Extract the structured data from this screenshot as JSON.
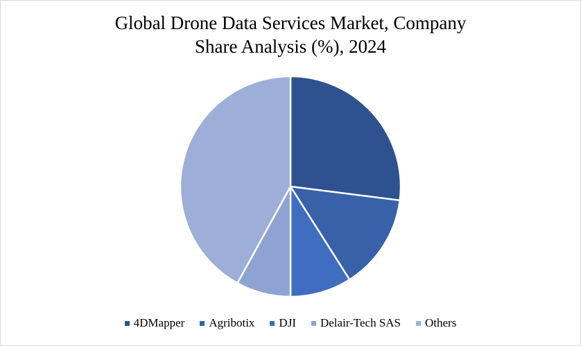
{
  "chart_data": {
    "type": "pie",
    "title_lines": [
      "Global Drone Data Services Market, Company",
      "Share Analysis (%), 2024"
    ],
    "slices": [
      {
        "label": "4DMapper",
        "value": 27,
        "color": "#2e528f"
      },
      {
        "label": "Agribotix",
        "value": 14,
        "color": "#3861aa"
      },
      {
        "label": "DJI",
        "value": 9,
        "color": "#3f6dbf"
      },
      {
        "label": "Delair-Tech SAS",
        "value": 8,
        "color": "#8fa3d3"
      },
      {
        "label": "Others",
        "value": 42,
        "color": "#9daed9"
      }
    ],
    "legend_position": "bottom"
  }
}
